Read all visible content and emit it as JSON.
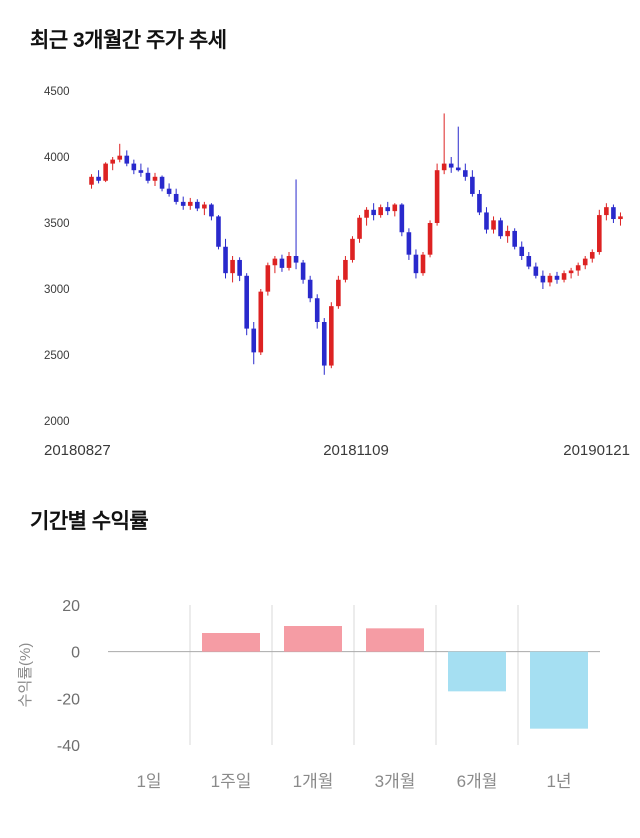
{
  "page": {
    "background": "#ffffff"
  },
  "chart_data": [
    {
      "type": "candlestick",
      "title": "최근 3개월간 주가 추세",
      "x_tick_labels": [
        "20180827",
        "20181109",
        "20190121"
      ],
      "y_ticks": [
        4500,
        4000,
        3500,
        3000,
        2500,
        2000
      ],
      "ylim": [
        2000,
        4500
      ],
      "up_color": "#dd2222",
      "down_color": "#2929cc",
      "grid": false,
      "candles": [
        [
          3790,
          3870,
          3760,
          3850
        ],
        [
          3850,
          3900,
          3800,
          3820
        ],
        [
          3820,
          3960,
          3810,
          3950
        ],
        [
          3950,
          4000,
          3900,
          3980
        ],
        [
          3980,
          4100,
          3960,
          4010
        ],
        [
          4010,
          4050,
          3930,
          3950
        ],
        [
          3950,
          3980,
          3870,
          3900
        ],
        [
          3900,
          3950,
          3850,
          3880
        ],
        [
          3880,
          3920,
          3800,
          3820
        ],
        [
          3820,
          3880,
          3780,
          3850
        ],
        [
          3850,
          3860,
          3740,
          3760
        ],
        [
          3760,
          3800,
          3700,
          3720
        ],
        [
          3720,
          3760,
          3640,
          3660
        ],
        [
          3660,
          3700,
          3600,
          3630
        ],
        [
          3630,
          3690,
          3600,
          3660
        ],
        [
          3660,
          3680,
          3590,
          3610
        ],
        [
          3610,
          3660,
          3560,
          3640
        ],
        [
          3640,
          3650,
          3520,
          3550
        ],
        [
          3550,
          3560,
          3300,
          3320
        ],
        [
          3320,
          3380,
          3080,
          3120
        ],
        [
          3120,
          3250,
          3050,
          3220
        ],
        [
          3220,
          3240,
          3060,
          3100
        ],
        [
          3100,
          3120,
          2650,
          2700
        ],
        [
          2700,
          2750,
          2430,
          2520
        ],
        [
          2520,
          3000,
          2500,
          2980
        ],
        [
          2980,
          3200,
          2950,
          3180
        ],
        [
          3180,
          3250,
          3120,
          3230
        ],
        [
          3230,
          3260,
          3130,
          3160
        ],
        [
          3160,
          3280,
          3140,
          3250
        ],
        [
          3250,
          3830,
          3150,
          3200
        ],
        [
          3200,
          3220,
          3040,
          3070
        ],
        [
          3070,
          3100,
          2900,
          2930
        ],
        [
          2930,
          2960,
          2700,
          2750
        ],
        [
          2750,
          2780,
          2350,
          2420
        ],
        [
          2420,
          2900,
          2400,
          2870
        ],
        [
          2870,
          3100,
          2850,
          3070
        ],
        [
          3070,
          3250,
          3050,
          3220
        ],
        [
          3220,
          3400,
          3200,
          3380
        ],
        [
          3380,
          3560,
          3350,
          3540
        ],
        [
          3540,
          3620,
          3480,
          3600
        ],
        [
          3600,
          3650,
          3520,
          3560
        ],
        [
          3560,
          3640,
          3540,
          3620
        ],
        [
          3620,
          3660,
          3560,
          3590
        ],
        [
          3590,
          3650,
          3550,
          3640
        ],
        [
          3640,
          3650,
          3400,
          3430
        ],
        [
          3430,
          3460,
          3220,
          3260
        ],
        [
          3260,
          3300,
          3080,
          3120
        ],
        [
          3120,
          3280,
          3100,
          3260
        ],
        [
          3260,
          3520,
          3240,
          3500
        ],
        [
          3500,
          3950,
          3480,
          3900
        ],
        [
          3900,
          4330,
          3870,
          3950
        ],
        [
          3950,
          4000,
          3880,
          3920
        ],
        [
          3920,
          4230,
          3890,
          3900
        ],
        [
          3900,
          3950,
          3820,
          3850
        ],
        [
          3850,
          3900,
          3700,
          3720
        ],
        [
          3720,
          3750,
          3560,
          3580
        ],
        [
          3580,
          3620,
          3420,
          3450
        ],
        [
          3450,
          3550,
          3420,
          3520
        ],
        [
          3520,
          3540,
          3380,
          3400
        ],
        [
          3400,
          3480,
          3350,
          3440
        ],
        [
          3440,
          3460,
          3300,
          3320
        ],
        [
          3320,
          3360,
          3220,
          3250
        ],
        [
          3250,
          3280,
          3150,
          3170
        ],
        [
          3170,
          3200,
          3080,
          3100
        ],
        [
          3100,
          3140,
          3000,
          3050
        ],
        [
          3050,
          3120,
          3020,
          3100
        ],
        [
          3100,
          3130,
          3040,
          3070
        ],
        [
          3070,
          3140,
          3050,
          3120
        ],
        [
          3120,
          3160,
          3080,
          3140
        ],
        [
          3140,
          3200,
          3100,
          3180
        ],
        [
          3180,
          3250,
          3150,
          3230
        ],
        [
          3230,
          3300,
          3200,
          3280
        ],
        [
          3280,
          3600,
          3260,
          3560
        ],
        [
          3560,
          3650,
          3520,
          3620
        ],
        [
          3620,
          3640,
          3500,
          3530
        ],
        [
          3530,
          3580,
          3480,
          3550
        ]
      ]
    },
    {
      "type": "bar",
      "title": "기간별 수익률",
      "ylabel": "수익률(%)",
      "categories": [
        "1일",
        "1주일",
        "1개월",
        "3개월",
        "6개월",
        "1년"
      ],
      "values": [
        0,
        8,
        11,
        10,
        -17,
        -33
      ],
      "y_ticks": [
        20,
        0,
        -20,
        -40
      ],
      "ylim": [
        -40,
        20
      ],
      "positive_color": "#f59ca4",
      "negative_color": "#a5dff2",
      "grid": true,
      "grid_color": "#d9d9d9",
      "zero_line_color": "#aaaaaa",
      "legend": "none"
    }
  ]
}
